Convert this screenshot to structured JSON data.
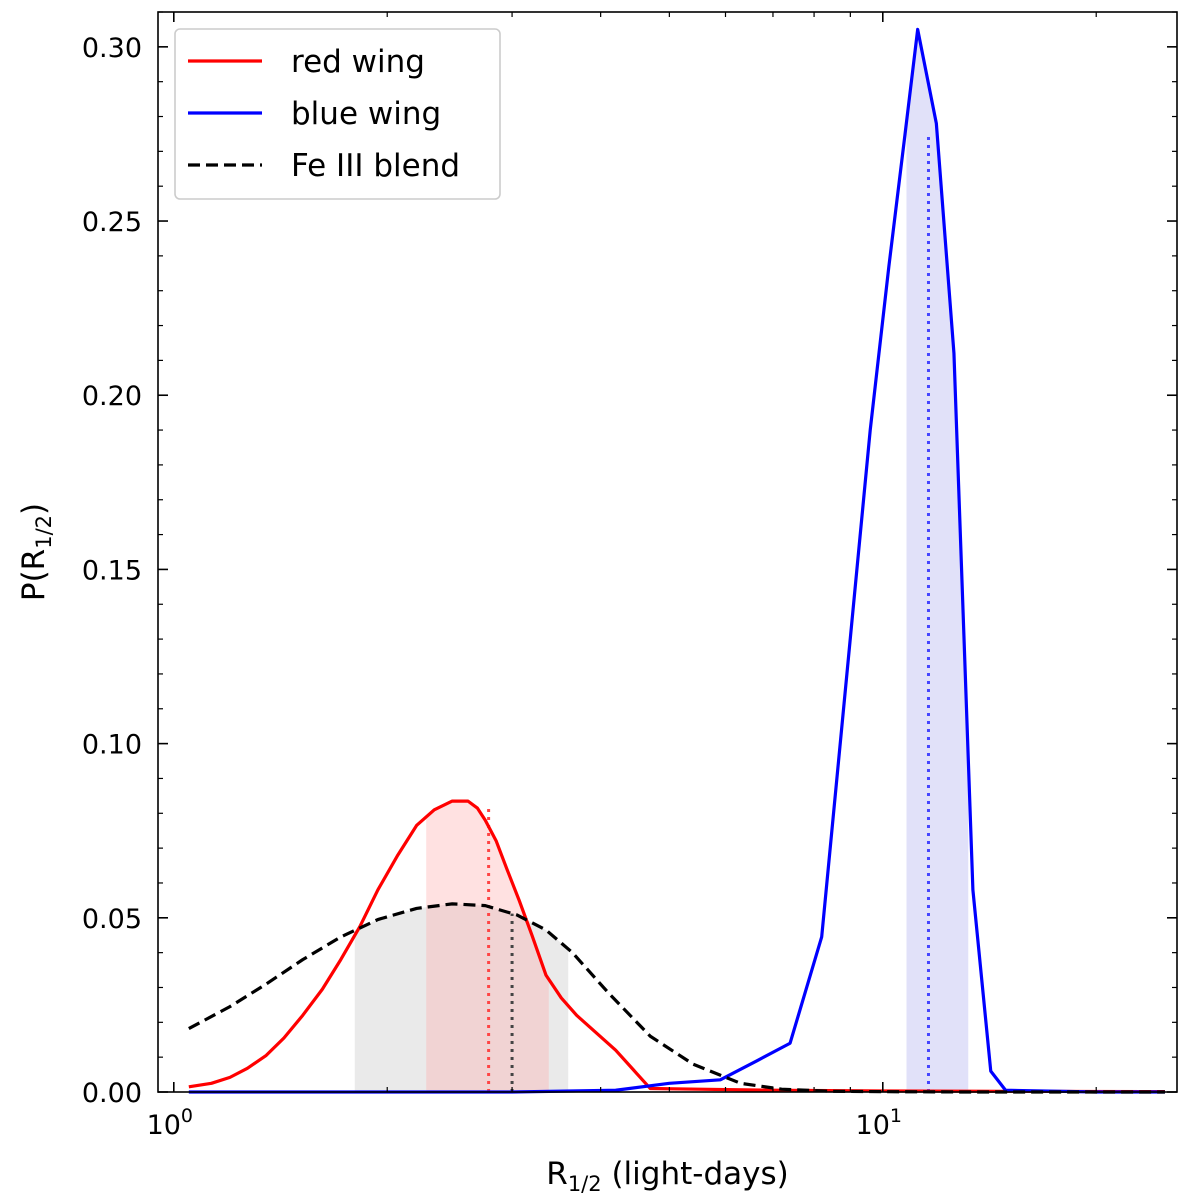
{
  "chart_data": {
    "type": "line",
    "title": "",
    "xlabel": "R_{1/2} (light-days)",
    "xlabel_main": "R",
    "xlabel_sub": "1/2",
    "xlabel_tail": " (light-days)",
    "ylabel": "P(R_{1/2})",
    "ylabel_pre": "P(R",
    "ylabel_sub": "1/2",
    "ylabel_post": ")",
    "xscale": "log",
    "xlim": [
      0.95,
      26.0
    ],
    "ylim": [
      0.0,
      0.31
    ],
    "x_major_ticks": [
      {
        "value": 1,
        "base": "10",
        "exp": "0"
      },
      {
        "value": 10,
        "base": "10",
        "exp": "1"
      }
    ],
    "y_ticks": [
      {
        "value": 0.0,
        "label": "0.00"
      },
      {
        "value": 0.05,
        "label": "0.05"
      },
      {
        "value": 0.1,
        "label": "0.10"
      },
      {
        "value": 0.15,
        "label": "0.15"
      },
      {
        "value": 0.2,
        "label": "0.20"
      },
      {
        "value": 0.25,
        "label": "0.25"
      },
      {
        "value": 0.3,
        "label": "0.30"
      }
    ],
    "legend_position": "top-left",
    "series": [
      {
        "name": "red wing",
        "color": "#ff0000",
        "dash": "solid",
        "x": [
          1.05,
          1.13,
          1.2,
          1.27,
          1.35,
          1.43,
          1.52,
          1.62,
          1.72,
          1.83,
          1.94,
          2.07,
          2.2,
          2.33,
          2.47,
          2.6,
          2.68,
          2.75,
          2.85,
          2.95,
          3.07,
          3.2,
          3.35,
          3.52,
          3.7,
          4.2,
          4.7,
          5.5,
          7,
          10,
          15,
          25
        ],
        "y": [
          0.0015,
          0.0025,
          0.0042,
          0.0068,
          0.0105,
          0.0155,
          0.022,
          0.0295,
          0.038,
          0.0475,
          0.058,
          0.068,
          0.0765,
          0.081,
          0.0835,
          0.0835,
          0.0815,
          0.078,
          0.072,
          0.064,
          0.055,
          0.045,
          0.0335,
          0.027,
          0.022,
          0.012,
          0.001,
          0.0008,
          0.0005,
          0.0003,
          0.0002,
          0.0001
        ]
      },
      {
        "name": "blue wing",
        "color": "#0000ff",
        "dash": "solid",
        "x": [
          1.05,
          2,
          3,
          4.2,
          5.0,
          5.9,
          6.65,
          7.4,
          8.2,
          8.9,
          9.6,
          10.2,
          10.75,
          11.2,
          11.9,
          12.6,
          13.4,
          14.2,
          14.9,
          20,
          25
        ],
        "y": [
          0.0,
          0.0,
          0.0,
          0.0005,
          0.0025,
          0.0035,
          0.009,
          0.014,
          0.0445,
          0.12,
          0.19,
          0.237,
          0.275,
          0.305,
          0.278,
          0.212,
          0.058,
          0.006,
          0.0005,
          0.0,
          0.0
        ]
      },
      {
        "name": "Fe III blend",
        "color": "#000000",
        "dash": "dashed",
        "x": [
          1.05,
          1.2,
          1.35,
          1.52,
          1.72,
          1.94,
          2.2,
          2.47,
          2.75,
          3.05,
          3.35,
          3.65,
          4.1,
          4.7,
          5.4,
          6.3,
          7.2,
          8.5,
          10,
          13,
          17,
          25
        ],
        "y": [
          0.0182,
          0.0245,
          0.031,
          0.038,
          0.0445,
          0.0495,
          0.0527,
          0.054,
          0.0535,
          0.0508,
          0.0465,
          0.04,
          0.0285,
          0.016,
          0.008,
          0.0025,
          0.0008,
          0.0002,
          0.0001,
          0.0,
          0.0,
          0.0
        ]
      }
    ],
    "shaded_regions": [
      {
        "series": "Fe III blend",
        "x0": 1.8,
        "x1": 3.6,
        "color": "#d9d9d9",
        "opacity": 0.55
      },
      {
        "series": "red wing",
        "x0": 2.27,
        "x1": 3.38,
        "color": "#ffaaaa",
        "opacity": 0.35
      },
      {
        "series": "blue wing",
        "x0": 10.8,
        "x1": 13.2,
        "color": "#aaaaee",
        "opacity": 0.35
      }
    ],
    "median_lines": [
      {
        "series": "red wing",
        "x": 2.78,
        "y_top": 0.0815,
        "color": "#ff4444"
      },
      {
        "series": "Fe III blend",
        "x": 3.0,
        "y_top": 0.0512,
        "color": "#444444"
      },
      {
        "series": "blue wing",
        "x": 11.6,
        "y_top": 0.275,
        "color": "#4444ff"
      }
    ]
  }
}
